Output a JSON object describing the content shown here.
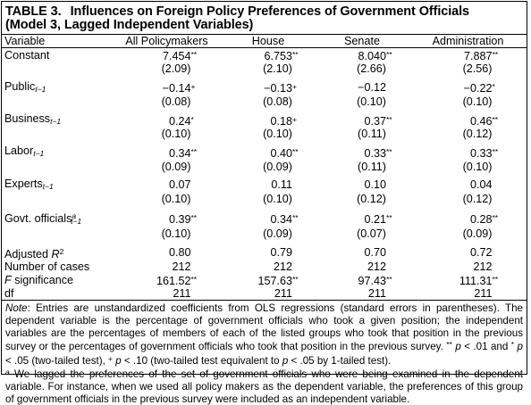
{
  "caption": {
    "label": "TABLE 3.",
    "title_line1": "Influences on Foreign Policy Preferences of Government Officials",
    "title_line2": "(Model 3, Lagged Independent Variables)"
  },
  "headers": {
    "variable": "Variable",
    "columns": [
      "All Policymakers",
      "House",
      "Senate",
      "Administration"
    ]
  },
  "rows": {
    "constant": {
      "label": "Constant",
      "coef": [
        [
          "7.454",
          "**"
        ],
        [
          "6.753",
          "**"
        ],
        [
          "8.040",
          "**"
        ],
        [
          "7.887",
          "**"
        ]
      ],
      "se": [
        "(2.09)",
        "(2.10)",
        "(2.66)",
        "(2.56)"
      ]
    },
    "public": {
      "label": "Public",
      "sub": "t−1",
      "coef": [
        [
          "−0.14",
          "+"
        ],
        [
          "−0.13",
          "+"
        ],
        [
          "−0.12",
          ""
        ],
        [
          "−0.22",
          "*"
        ]
      ],
      "se": [
        "(0.08)",
        "(0.08)",
        "(0.10)",
        "(0.10)"
      ]
    },
    "business": {
      "label": "Business",
      "sub": "t−1",
      "coef": [
        [
          "0.24",
          "*"
        ],
        [
          "0.18",
          "+"
        ],
        [
          "0.37",
          "**"
        ],
        [
          "0.46",
          "**"
        ]
      ],
      "se": [
        "(0.10)",
        "(0.10)",
        "(0.11)",
        "(0.12)"
      ]
    },
    "labor": {
      "label": "Labor",
      "sub": "t−1",
      "coef": [
        [
          "0.34",
          "**"
        ],
        [
          "0.40",
          "**"
        ],
        [
          "0.33",
          "**"
        ],
        [
          "0.33",
          "**"
        ]
      ],
      "se": [
        "(0.09)",
        "(0.09)",
        "(0.11)",
        "(0.10)"
      ]
    },
    "experts": {
      "label": "Experts",
      "sub": "t−1",
      "coef": [
        [
          "0.07",
          ""
        ],
        [
          "0.11",
          ""
        ],
        [
          "0.10",
          ""
        ],
        [
          "0.04",
          ""
        ]
      ],
      "se": [
        "(0.10)",
        "(0.10)",
        "(0.12)",
        "(0.12)"
      ]
    },
    "govt": {
      "label": "Govt. officials",
      "sup": "a",
      "sub": "t−1",
      "coef": [
        [
          "0.39",
          "**"
        ],
        [
          "0.34",
          "**"
        ],
        [
          "0.21",
          "**"
        ],
        [
          "0.28",
          "**"
        ]
      ],
      "se": [
        "(0.10)",
        "(0.09)",
        "(0.07)",
        "(0.09)"
      ]
    }
  },
  "stats": {
    "adjr2": {
      "label": "Adjusted",
      "label_r": "R",
      "label_sup": "2",
      "values": [
        [
          "0.80",
          ""
        ],
        [
          "0.79",
          ""
        ],
        [
          "0.70",
          ""
        ],
        [
          "0.72",
          ""
        ]
      ]
    },
    "cases": {
      "label": "Number of cases",
      "values": [
        [
          "212",
          ""
        ],
        [
          "212",
          ""
        ],
        [
          "212",
          ""
        ],
        [
          "212",
          ""
        ]
      ]
    },
    "fsig": {
      "label_f": "F",
      "label": " significance",
      "values": [
        [
          "161.52",
          "**"
        ],
        [
          "157.63",
          "**"
        ],
        [
          "97.43",
          "**"
        ],
        [
          "111.31",
          "**"
        ]
      ]
    },
    "df": {
      "label": "df",
      "values": [
        "211",
        "211",
        "211",
        "211"
      ]
    }
  },
  "notes": {
    "note_label": "Note",
    "note_text": ": Entries are unstandardized coefficients from OLS regressions (standard errors in parentheses). The dependent variable is the percentage of government officials who took a given position; the independent variables are the percentages of members of each of the listed groups who took that position in the previous survey or the percentages of government officials who took that position in the previous survey. ",
    "sig_1_mark": "**",
    "sig_1_p": "p",
    "sig_1_text": " < .01 and",
    "sig_2_mark": "*",
    "sig_2_p": "p",
    "sig_2_text": " < .05 (two-tailed test), ",
    "sig_3_mark": "+",
    "sig_3_p": "p",
    "sig_3_text": " < .10 (two-tailed test equivalent to ",
    "sig_3_p2": "p",
    "sig_3_text2": " < .05 by 1-tailed test).",
    "fn_mark": "a",
    "fn_text": " We lagged the preferences of the set of government officials who were being examined in the dependent variable. For instance, when we used all policy makers as the dependent variable, the preferences of this group of government officials in the previous survey were included as an independent variable."
  }
}
